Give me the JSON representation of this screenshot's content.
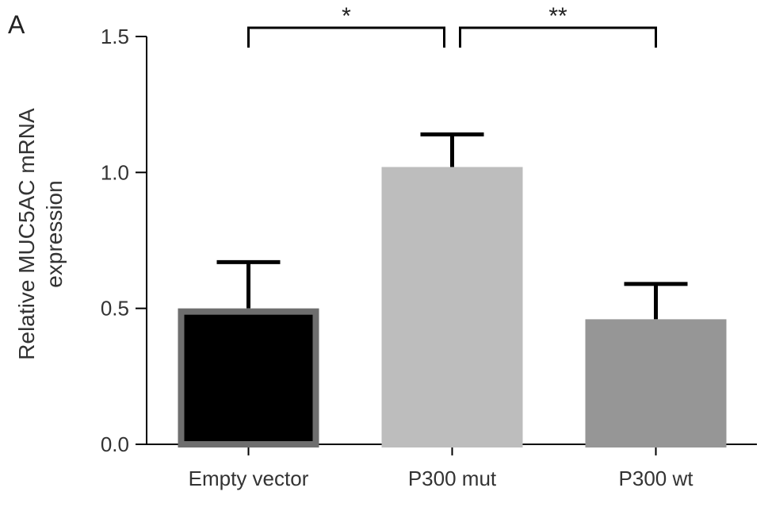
{
  "panel_label": "A",
  "chart_data": {
    "type": "bar",
    "title": "",
    "xlabel": "",
    "ylabel_lines": [
      "Relative MUC5AC mRNA",
      "expression"
    ],
    "categories": [
      "Empty vector",
      "P300 mut",
      "P300 wt"
    ],
    "values": [
      0.5,
      1.02,
      0.46
    ],
    "errors": [
      0.17,
      0.12,
      0.13
    ],
    "colors": [
      "#000000",
      "#bdbdbd",
      "#969696"
    ],
    "bar_borders": [
      "#6e6e6e",
      "#bdbdbd",
      "#969696"
    ],
    "ylim": [
      0,
      1.5
    ],
    "yticks": [
      {
        "value": 0.0,
        "label": "0.0"
      },
      {
        "value": 0.5,
        "label": "0.5"
      },
      {
        "value": 1.0,
        "label": "1.0"
      },
      {
        "value": 1.5,
        "label": "1.5"
      }
    ],
    "grid": false,
    "significance": [
      {
        "from": 0,
        "to": 1,
        "label": "*"
      },
      {
        "from": 1,
        "to": 2,
        "label": "**"
      }
    ]
  }
}
